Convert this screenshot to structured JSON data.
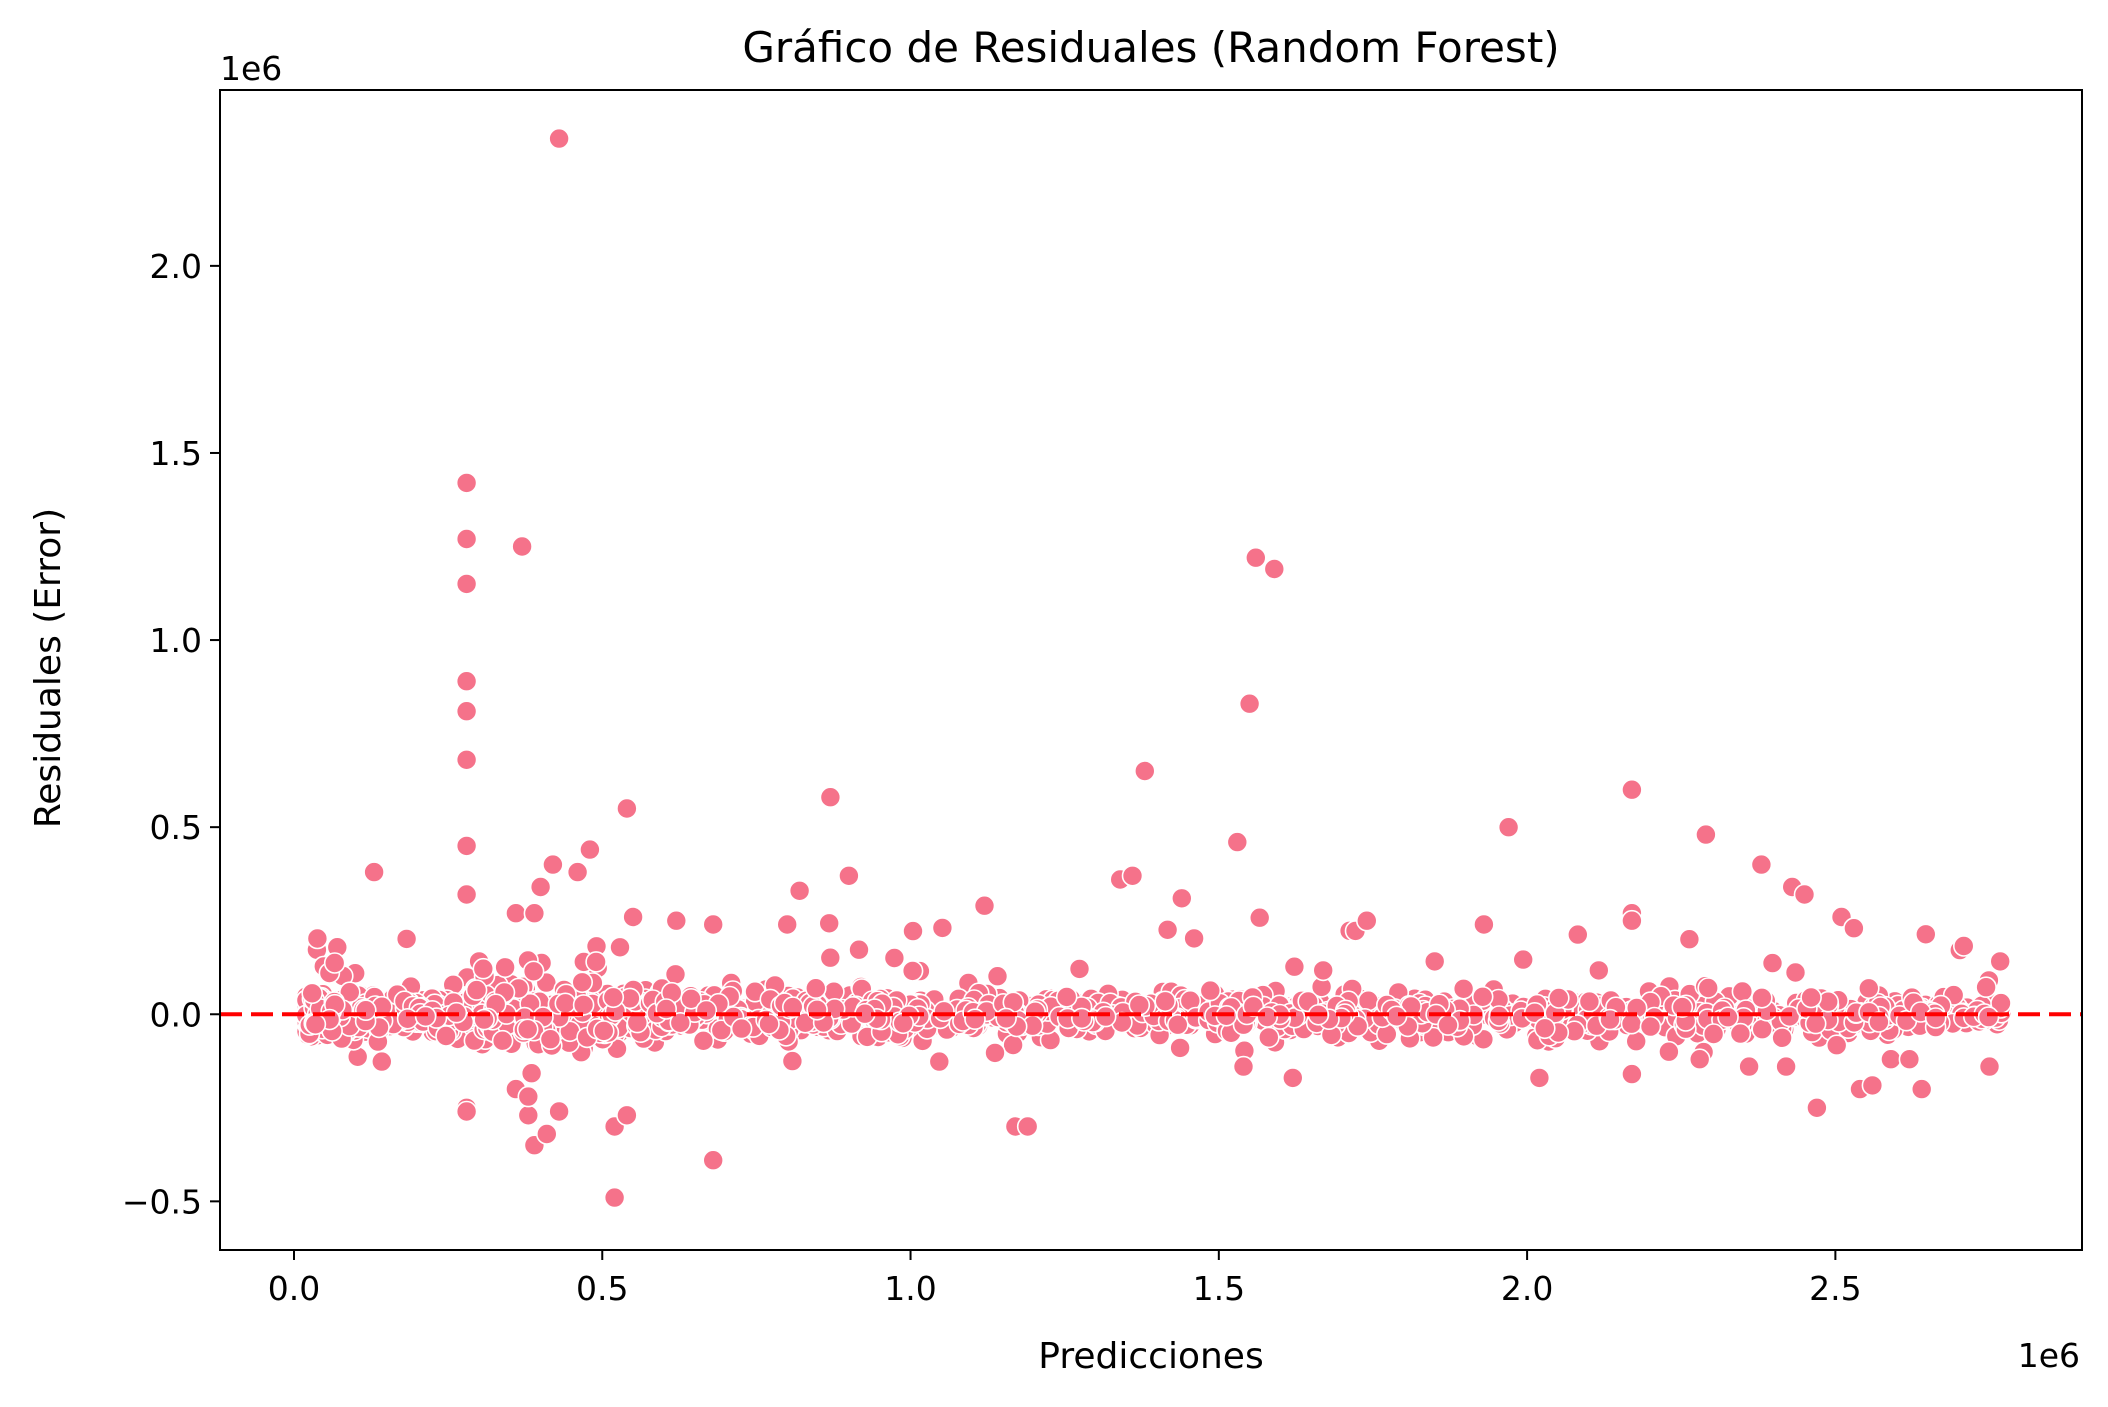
{
  "chart_data": {
    "type": "scatter",
    "title": "Gráfico de Residuales (Random Forest)",
    "xlabel": "Predicciones",
    "ylabel": "Residuales (Error)",
    "x_offset_text": "1e6",
    "y_offset_text": "1e6",
    "xlim": [
      -0.12,
      2.9
    ],
    "ylim": [
      -0.63,
      2.47
    ],
    "x_ticks": [
      0.0,
      0.5,
      1.0,
      1.5,
      2.0,
      2.5
    ],
    "x_tick_labels": [
      "0.0",
      "0.5",
      "1.0",
      "1.5",
      "2.0",
      "2.5"
    ],
    "y_ticks": [
      -0.5,
      0.0,
      0.5,
      1.0,
      1.5,
      2.0
    ],
    "y_tick_labels": [
      "−0.5",
      "0.0",
      "0.5",
      "1.0",
      "1.5",
      "2.0"
    ],
    "grid": false,
    "colors": {
      "points": "#f5728a",
      "point_edge": "#ffffff",
      "reference_line": "#ff0000"
    },
    "reference_line": {
      "y": 0.0,
      "style": "dashed"
    },
    "units_note": "x and y in units of 1e6",
    "series": [
      {
        "outliers": [
          [
            0.43,
            2.34
          ],
          [
            0.28,
            1.42
          ],
          [
            0.28,
            1.27
          ],
          [
            0.28,
            1.15
          ],
          [
            0.37,
            1.25
          ],
          [
            0.28,
            0.89
          ],
          [
            0.28,
            0.81
          ],
          [
            0.28,
            0.68
          ],
          [
            0.28,
            0.45
          ],
          [
            0.28,
            0.32
          ],
          [
            0.28,
            -0.25
          ],
          [
            0.28,
            -0.26
          ],
          [
            1.56,
            1.22
          ],
          [
            1.59,
            1.19
          ],
          [
            1.55,
            0.83
          ],
          [
            1.38,
            0.65
          ],
          [
            0.54,
            0.55
          ],
          [
            0.87,
            0.58
          ],
          [
            0.9,
            0.37
          ],
          [
            2.17,
            0.6
          ],
          [
            1.97,
            0.5
          ],
          [
            2.29,
            0.48
          ],
          [
            1.53,
            0.46
          ],
          [
            2.38,
            0.4
          ],
          [
            0.42,
            0.4
          ],
          [
            0.48,
            0.44
          ],
          [
            0.46,
            0.38
          ],
          [
            0.13,
            0.38
          ],
          [
            1.34,
            0.36
          ],
          [
            1.36,
            0.37
          ],
          [
            2.43,
            0.34
          ],
          [
            2.45,
            0.32
          ],
          [
            1.44,
            0.31
          ],
          [
            0.82,
            0.33
          ],
          [
            0.4,
            0.34
          ],
          [
            0.36,
            0.27
          ],
          [
            0.39,
            0.27
          ],
          [
            1.12,
            0.29
          ],
          [
            2.17,
            0.27
          ],
          [
            2.17,
            0.25
          ],
          [
            1.74,
            0.25
          ],
          [
            2.51,
            0.26
          ],
          [
            2.53,
            0.23
          ],
          [
            1.93,
            0.24
          ],
          [
            0.55,
            0.26
          ],
          [
            0.68,
            0.24
          ],
          [
            0.8,
            0.24
          ],
          [
            0.62,
            0.25
          ],
          [
            0.52,
            -0.49
          ],
          [
            0.68,
            -0.39
          ],
          [
            0.39,
            -0.35
          ],
          [
            0.41,
            -0.32
          ],
          [
            0.52,
            -0.3
          ],
          [
            0.54,
            -0.27
          ],
          [
            1.17,
            -0.3
          ],
          [
            1.19,
            -0.3
          ],
          [
            0.43,
            -0.26
          ],
          [
            0.38,
            -0.27
          ],
          [
            2.47,
            -0.25
          ],
          [
            2.54,
            -0.2
          ],
          [
            2.56,
            -0.19
          ],
          [
            2.64,
            -0.2
          ],
          [
            2.02,
            -0.17
          ],
          [
            1.62,
            -0.17
          ],
          [
            2.17,
            -0.16
          ],
          [
            2.42,
            -0.14
          ],
          [
            2.36,
            -0.14
          ],
          [
            1.54,
            -0.14
          ],
          [
            2.59,
            -0.12
          ],
          [
            2.62,
            -0.12
          ],
          [
            2.75,
            -0.14
          ],
          [
            2.28,
            -0.12
          ],
          [
            2.23,
            -0.1
          ],
          [
            0.36,
            -0.2
          ],
          [
            0.38,
            -0.22
          ],
          [
            0.47,
            0.14
          ],
          [
            0.49,
            0.14
          ]
        ]
      }
    ]
  }
}
